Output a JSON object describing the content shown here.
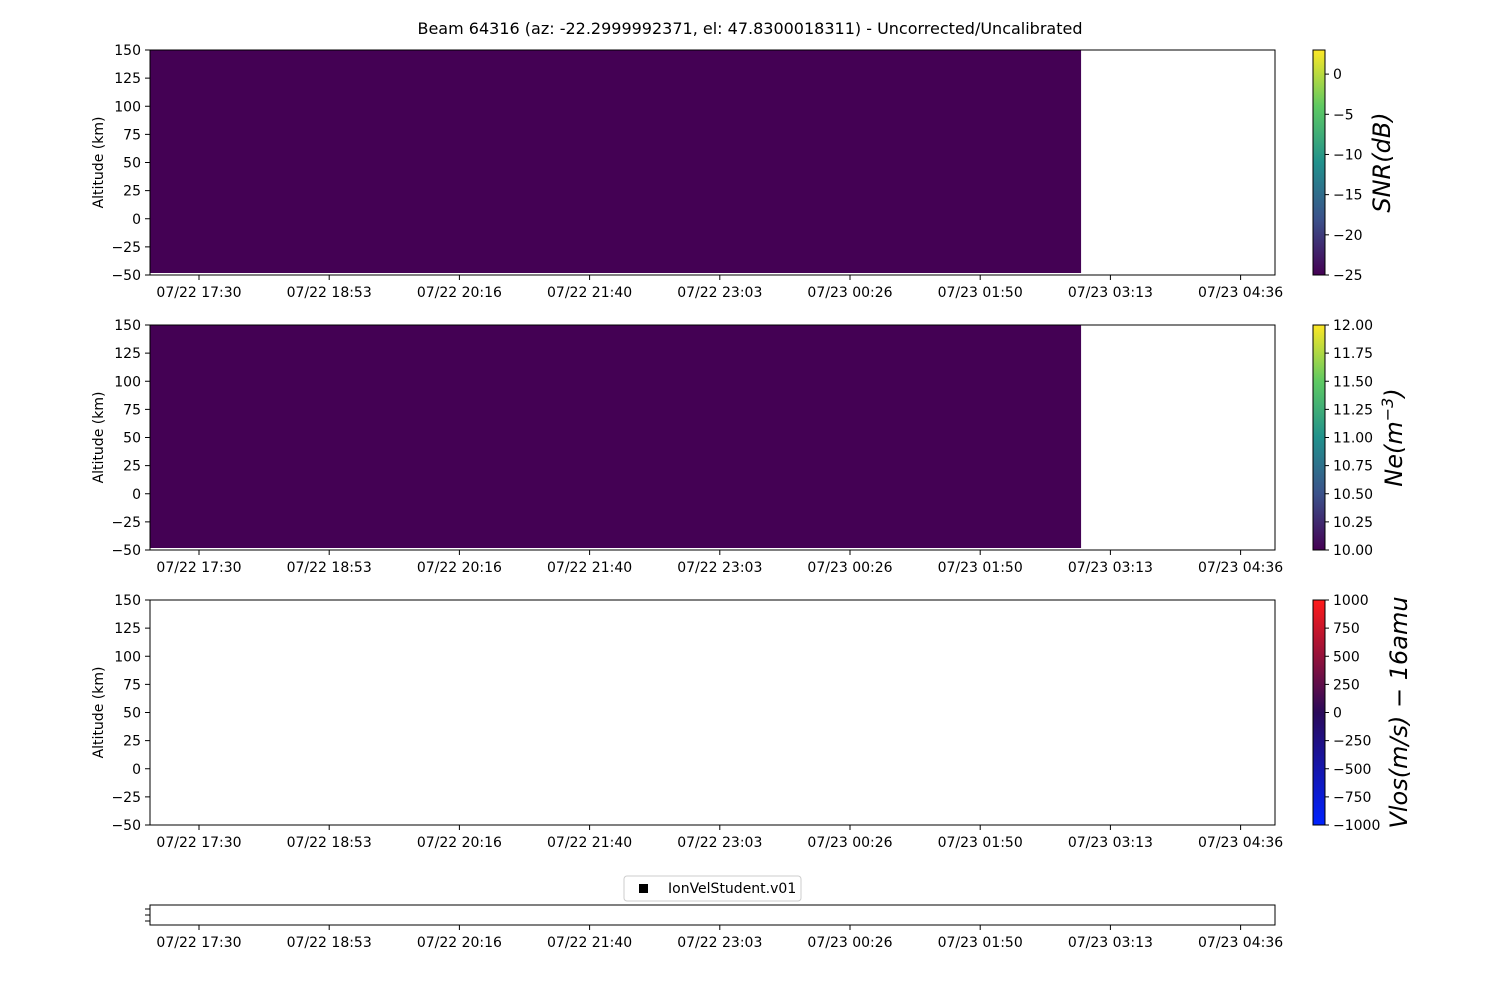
{
  "title": "Beam 64316 (az: -22.2999992371, el: 47.8300018311) - Uncorrected/Uncalibrated",
  "x_tick_labels": [
    "07/22 17:30",
    "07/22 18:53",
    "07/22 20:16",
    "07/22 21:40",
    "07/22 23:03",
    "07/23 00:26",
    "07/23 01:50",
    "07/23 03:13",
    "07/23 04:36"
  ],
  "chart_data": [
    {
      "type": "heatmap",
      "title": "",
      "xlabel": "",
      "ylabel": "Altitude (km)",
      "ylim": [
        -50,
        150
      ],
      "yticks": [
        150,
        125,
        100,
        75,
        50,
        25,
        0,
        -25,
        -50
      ],
      "x_start": "07/22 17:30",
      "x_end": "07/23 04:36",
      "data_extent_x": [
        "07/22 17:30",
        "07/23 02:54"
      ],
      "values_fill": -25,
      "colormap": "viridis",
      "fill_color": "#440154",
      "colorbar": {
        "label_main": "SNR(dB)",
        "label_sup": "",
        "ticks": [
          0,
          -5,
          -10,
          -15,
          -20,
          -25
        ],
        "range": [
          -25,
          3
        ],
        "colors": [
          "#440154",
          "#3b528b",
          "#21918c",
          "#5ec962",
          "#fde725"
        ]
      }
    },
    {
      "type": "heatmap",
      "title": "",
      "xlabel": "",
      "ylabel": "Altitude (km)",
      "ylim": [
        -50,
        150
      ],
      "yticks": [
        150,
        125,
        100,
        75,
        50,
        25,
        0,
        -25,
        -50
      ],
      "x_start": "07/22 17:30",
      "x_end": "07/23 04:36",
      "data_extent_x": [
        "07/22 17:30",
        "07/23 02:54"
      ],
      "values_fill": 10.0,
      "colormap": "viridis",
      "fill_color": "#440154",
      "colorbar": {
        "label_main": "Ne(m",
        "label_sup": "−3",
        "label_end": ")",
        "ticks": [
          "12.00",
          "11.75",
          "11.50",
          "11.25",
          "11.00",
          "10.75",
          "10.50",
          "10.25",
          "10.00"
        ],
        "range": [
          10,
          12
        ],
        "colors": [
          "#440154",
          "#3b528b",
          "#21918c",
          "#5ec962",
          "#fde725"
        ]
      }
    },
    {
      "type": "heatmap",
      "title": "",
      "xlabel": "",
      "ylabel": "Altitude (km)",
      "ylim": [
        -50,
        150
      ],
      "yticks": [
        150,
        125,
        100,
        75,
        50,
        25,
        0,
        -25,
        -50
      ],
      "x_start": "07/22 17:30",
      "x_end": "07/23 04:36",
      "data_extent_x": null,
      "colormap": "bwr-dark",
      "colorbar": {
        "label_main": "Vlos(m/s) − 16amu",
        "label_sup": "",
        "ticks": [
          1000,
          750,
          500,
          250,
          0,
          -250,
          -500,
          -750,
          -1000
        ],
        "range": [
          -1000,
          1000
        ],
        "colors": [
          "#0022ff",
          "#2a0a5a",
          "#ff1a1a"
        ]
      }
    },
    {
      "type": "scatter",
      "title": "",
      "xlabel": "",
      "ylabel": "",
      "legend": "IonVelStudent.v01",
      "legend_placement": "top-center",
      "series": [
        {
          "name": "IonVelStudent.v01",
          "values": []
        }
      ]
    }
  ]
}
